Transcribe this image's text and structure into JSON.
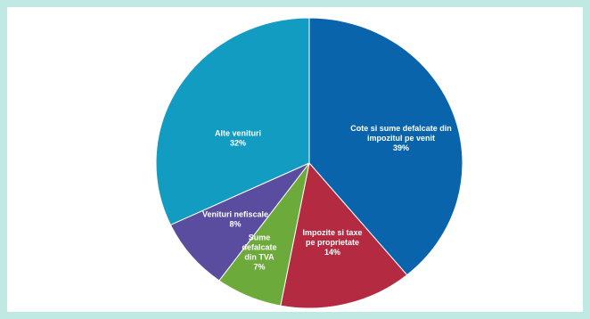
{
  "chart_data": {
    "type": "pie",
    "title": "",
    "legend": "none",
    "start_angle_deg": 0,
    "direction": "clockwise",
    "slices": [
      {
        "label_lines": [
          "Cote si sume defalcate din",
          "impozitul pe venit"
        ],
        "percent_label": "39%",
        "value": 39,
        "color": "#0a64ac"
      },
      {
        "label_lines": [
          "Impozite si taxe",
          "pe proprietate"
        ],
        "percent_label": "14%",
        "value": 14,
        "color": "#b32a41"
      },
      {
        "label_lines": [
          "Sume",
          "defalcate",
          "din TVA"
        ],
        "percent_label": "7%",
        "value": 7,
        "color": "#6daa3c"
      },
      {
        "label_lines": [
          "Venituri nefiscale"
        ],
        "percent_label": "8%",
        "value": 8,
        "color": "#5a4c9e"
      },
      {
        "label_lines": [
          "Alte venituri"
        ],
        "percent_label": "32%",
        "value": 32,
        "color": "#139cc2"
      }
    ]
  }
}
